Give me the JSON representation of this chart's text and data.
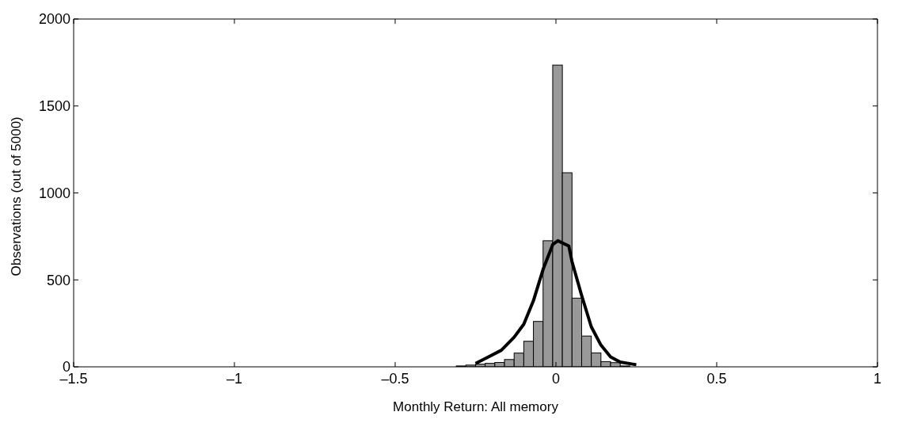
{
  "chart_data": {
    "type": "histogram",
    "xlabel": "Monthly Return: All memory",
    "ylabel": "Observations (out of 5000)",
    "bins": [
      -0.97,
      -0.94,
      -0.91,
      -0.88,
      -0.85,
      -0.82,
      -0.79,
      -0.76,
      -0.73,
      -0.7,
      -0.67,
      -0.64,
      -0.61,
      -0.58,
      -0.55,
      -0.52,
      -0.49,
      -0.46,
      -0.43,
      -0.4,
      -0.37,
      -0.34,
      -0.31,
      -0.28,
      -0.25,
      -0.22,
      -0.19,
      -0.16,
      -0.13,
      -0.1,
      -0.07,
      -0.04,
      -0.01,
      0.02,
      0.05,
      0.08,
      0.11,
      0.14,
      0.17,
      0.2,
      0.23,
      0.26,
      0.29,
      0.32,
      0.35
    ],
    "values": [
      0,
      0,
      null,
      0,
      0,
      0,
      0,
      0,
      0,
      null,
      0,
      0,
      0,
      0,
      null,
      0,
      0,
      null,
      0,
      0,
      0,
      0,
      5,
      10,
      15,
      20,
      25,
      42,
      79,
      147,
      261,
      725,
      1735,
      1116,
      395,
      177,
      80,
      30,
      24,
      5,
      null,
      0,
      0,
      0
    ],
    "color": "#999999",
    "series": [
      {
        "type": "line",
        "color": "#000000",
        "x": [
          -0.25,
          -0.21,
          -0.17,
          -0.13,
          -0.1,
          -0.07,
          -0.04,
          -0.01,
          0.006,
          0.04,
          0.05,
          0.08,
          0.11,
          0.14,
          0.17,
          0.2,
          0.25
        ],
        "values": [
          19,
          57,
          95,
          170,
          245,
          380,
          560,
          703,
          725,
          695,
          605,
          410,
          230,
          125,
          57,
          27,
          12
        ]
      }
    ],
    "xlim": [
      -1.5,
      1
    ],
    "xticks": [
      {
        "value": -1.5,
        "label": "–1.5"
      },
      {
        "value": -1,
        "label": "–1"
      },
      {
        "value": -0.5,
        "label": "–0.5"
      },
      0,
      0.5,
      1
    ],
    "ylim": [
      0,
      2000
    ],
    "yticks": [
      0,
      500,
      1000,
      1500,
      2000
    ],
    "grid": false
  }
}
